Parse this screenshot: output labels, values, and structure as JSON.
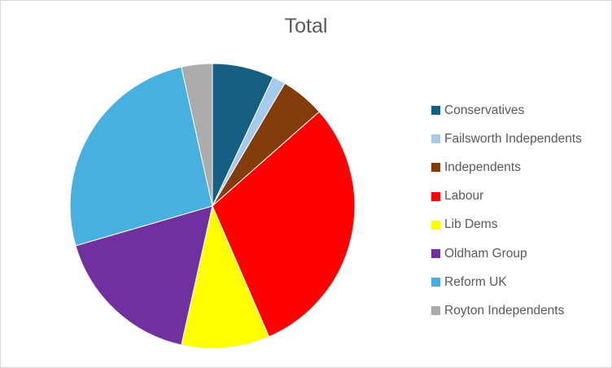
{
  "chart_data": {
    "type": "pie",
    "title": "Total",
    "categories": [
      "Conservatives",
      "Failsworth Independents",
      "Independents",
      "Labour",
      "Lib Dems",
      "Oldham Group",
      "Reform UK",
      "Royton Independents"
    ],
    "values": [
      7,
      1.5,
      5,
      30,
      10,
      17,
      26,
      3.5
    ],
    "colors": [
      "#156082",
      "#a6caec",
      "#843c0c",
      "#ff0000",
      "#ffff00",
      "#7030a0",
      "#47b0e0",
      "#ababab"
    ],
    "legend_position": "right",
    "start_angle": "12 o'clock",
    "direction": "clockwise"
  }
}
